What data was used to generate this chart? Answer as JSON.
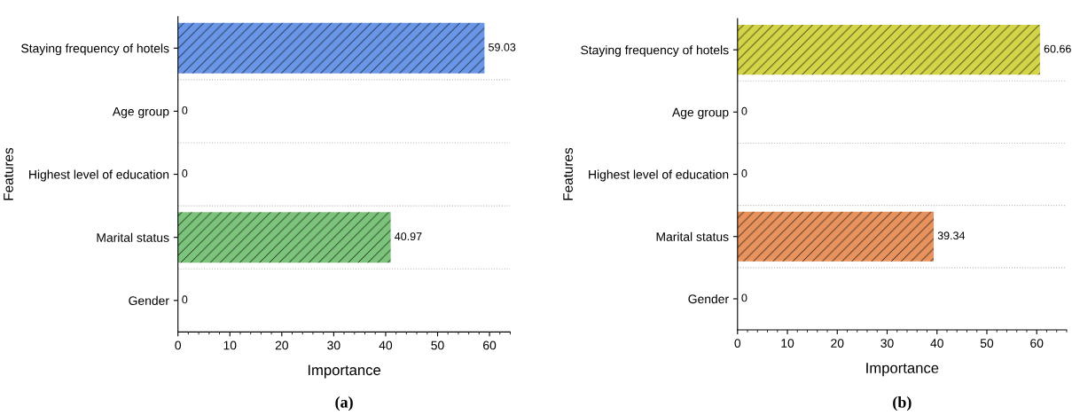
{
  "chart_data": [
    {
      "type": "bar",
      "orientation": "horizontal",
      "categories": [
        "Staying frequency of hotels",
        "Age group",
        "Highest level of education",
        "Marital status",
        "Gender"
      ],
      "values": [
        59.03,
        0,
        0,
        40.97,
        0
      ],
      "colors": [
        "#6a96e8",
        "#6a96e8",
        "#6a96e8",
        "#7cc47c",
        "#7cc47c"
      ],
      "xlabel": "Importance",
      "ylabel": "Features",
      "xlim": [
        0,
        64
      ],
      "xticks": [
        0,
        10,
        20,
        30,
        40,
        50,
        60
      ],
      "grid": "y",
      "data_labels": true,
      "annotations": [
        "(a)"
      ]
    },
    {
      "type": "bar",
      "orientation": "horizontal",
      "categories": [
        "Staying frequency of hotels",
        "Age group",
        "Highest level of education",
        "Marital status",
        "Gender"
      ],
      "values": [
        60.66,
        0,
        0,
        39.34,
        0
      ],
      "colors": [
        "#d4d448",
        "#d4d448",
        "#d4d448",
        "#e8935e",
        "#e8935e"
      ],
      "xlabel": "Importance",
      "ylabel": "Features",
      "xlim": [
        0,
        66
      ],
      "xticks": [
        0,
        10,
        20,
        30,
        40,
        50,
        60
      ],
      "grid": "y",
      "data_labels": true,
      "annotations": [
        "(b)"
      ]
    }
  ]
}
